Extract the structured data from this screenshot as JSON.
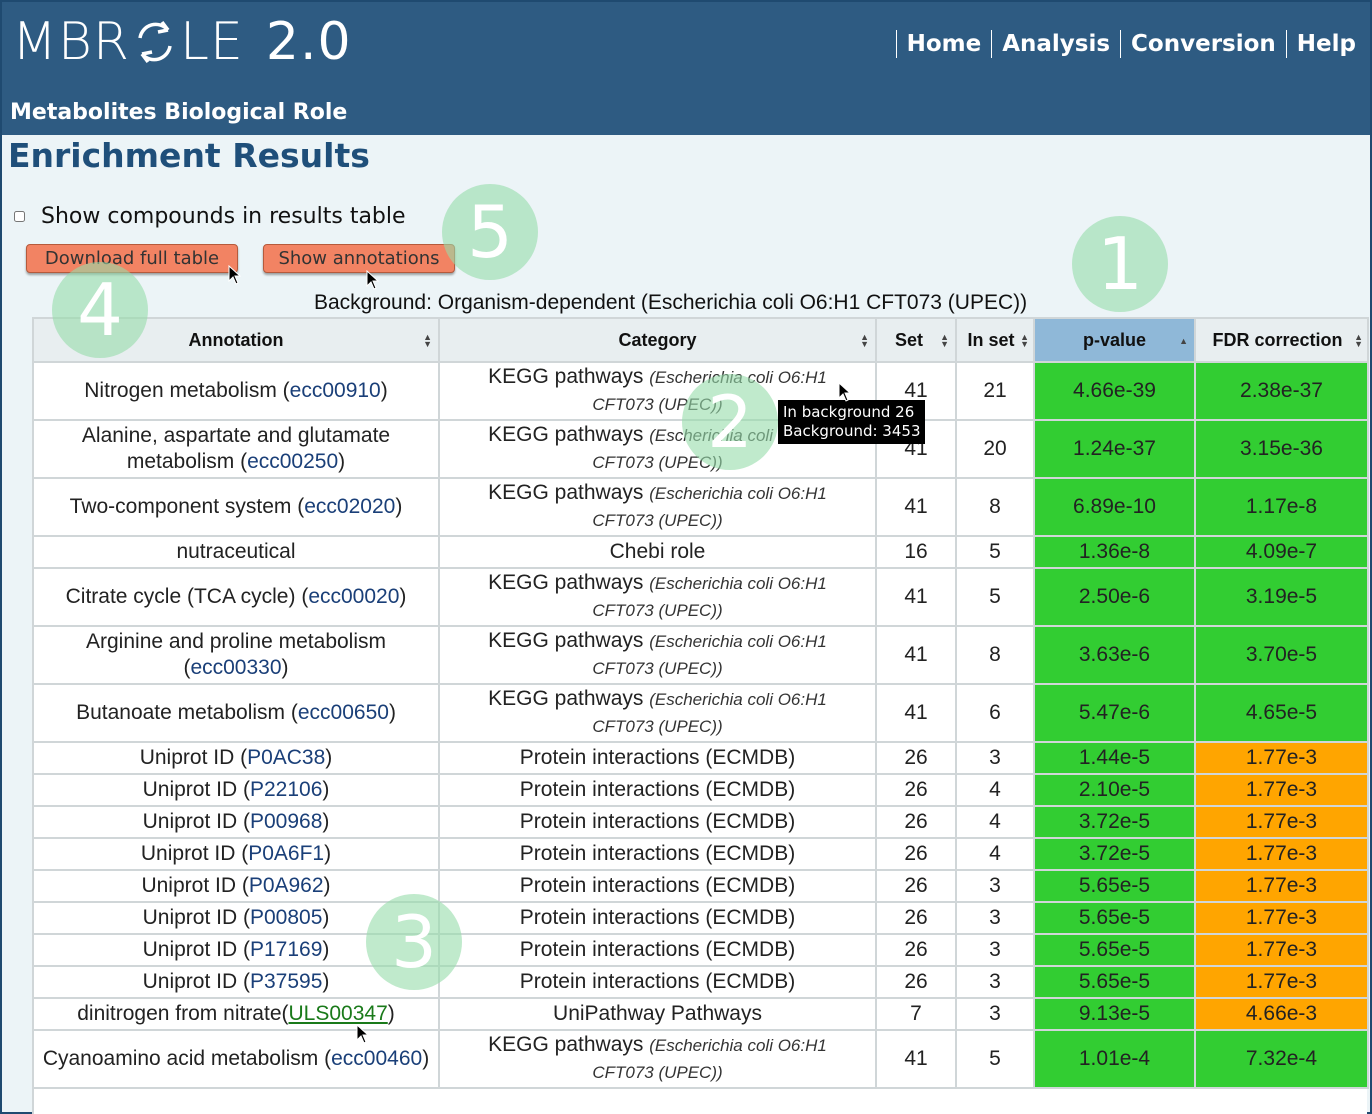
{
  "header": {
    "logo_text_a": "MBR",
    "logo_text_b": "LE",
    "logo_version": "2.0",
    "tagline": "Metabolites Biological Role",
    "nav": [
      {
        "label": "Home"
      },
      {
        "label": "Analysis"
      },
      {
        "label": "Conversion"
      },
      {
        "label": "Help"
      }
    ]
  },
  "page_title": "Enrichment Results",
  "show_compounds_label": "Show compounds in results table",
  "buttons": {
    "download": "Download full table",
    "annotations": "Show annotations"
  },
  "background_line": "Background: Organism-dependent (Escherichia coli O6:H1 CFT073 (UPEC))",
  "tooltip": {
    "line1": "In background 26",
    "line2": "Background: 3453"
  },
  "badges": [
    "1",
    "2",
    "3",
    "4",
    "5"
  ],
  "table": {
    "headers": [
      "Annotation",
      "Category",
      "Set",
      "In set",
      "p-value",
      "FDR correction"
    ],
    "rows": [
      {
        "pre": "Nitrogen metabolism (",
        "link": "ecc00910",
        "post": ")",
        "cat": "KEGG pathways",
        "org": "(Escherichia coli O6:H1 CFT073 (UPEC))",
        "set": "41",
        "inset": "21",
        "p": "4.66e-39",
        "fdr": "2.38e-37",
        "fdr_color": "green"
      },
      {
        "pre": "Alanine, aspartate and glutamate metabolism (",
        "link": "ecc00250",
        "post": ")",
        "cat": "KEGG pathways",
        "org": "(Escherichia coli O6:H1 CFT073 (UPEC))",
        "set": "41",
        "inset": "20",
        "p": "1.24e-37",
        "fdr": "3.15e-36",
        "fdr_color": "green"
      },
      {
        "pre": "Two-component system (",
        "link": "ecc02020",
        "post": ")",
        "cat": "KEGG pathways",
        "org": "(Escherichia coli O6:H1 CFT073 (UPEC))",
        "set": "41",
        "inset": "8",
        "p": "6.89e-10",
        "fdr": "1.17e-8",
        "fdr_color": "green"
      },
      {
        "pre": "nutraceutical",
        "link": "",
        "post": "",
        "cat": "Chebi role",
        "org": "",
        "set": "16",
        "inset": "5",
        "p": "1.36e-8",
        "fdr": "4.09e-7",
        "fdr_color": "green"
      },
      {
        "pre": "Citrate cycle (TCA cycle) (",
        "link": "ecc00020",
        "post": ")",
        "cat": "KEGG pathways",
        "org": "(Escherichia coli O6:H1 CFT073 (UPEC))",
        "set": "41",
        "inset": "5",
        "p": "2.50e-6",
        "fdr": "3.19e-5",
        "fdr_color": "green"
      },
      {
        "pre": "Arginine and proline metabolism (",
        "link": "ecc00330",
        "post": ")",
        "cat": "KEGG pathways",
        "org": "(Escherichia coli O6:H1 CFT073 (UPEC))",
        "set": "41",
        "inset": "8",
        "p": "3.63e-6",
        "fdr": "3.70e-5",
        "fdr_color": "green"
      },
      {
        "pre": "Butanoate metabolism (",
        "link": "ecc00650",
        "post": ")",
        "cat": "KEGG pathways",
        "org": "(Escherichia coli O6:H1 CFT073 (UPEC))",
        "set": "41",
        "inset": "6",
        "p": "5.47e-6",
        "fdr": "4.65e-5",
        "fdr_color": "green"
      },
      {
        "pre": "Uniprot ID (",
        "link": "P0AC38",
        "post": ")",
        "cat": "Protein interactions (ECMDB)",
        "org": "",
        "set": "26",
        "inset": "3",
        "p": "1.44e-5",
        "fdr": "1.77e-3",
        "fdr_color": "orange"
      },
      {
        "pre": "Uniprot ID (",
        "link": "P22106",
        "post": ")",
        "cat": "Protein interactions (ECMDB)",
        "org": "",
        "set": "26",
        "inset": "4",
        "p": "2.10e-5",
        "fdr": "1.77e-3",
        "fdr_color": "orange"
      },
      {
        "pre": "Uniprot ID (",
        "link": "P00968",
        "post": ")",
        "cat": "Protein interactions (ECMDB)",
        "org": "",
        "set": "26",
        "inset": "4",
        "p": "3.72e-5",
        "fdr": "1.77e-3",
        "fdr_color": "orange"
      },
      {
        "pre": "Uniprot ID (",
        "link": "P0A6F1",
        "post": ")",
        "cat": "Protein interactions (ECMDB)",
        "org": "",
        "set": "26",
        "inset": "4",
        "p": "3.72e-5",
        "fdr": "1.77e-3",
        "fdr_color": "orange"
      },
      {
        "pre": "Uniprot ID (",
        "link": "P0A962",
        "post": ")",
        "cat": "Protein interactions (ECMDB)",
        "org": "",
        "set": "26",
        "inset": "3",
        "p": "5.65e-5",
        "fdr": "1.77e-3",
        "fdr_color": "orange"
      },
      {
        "pre": "Uniprot ID (",
        "link": "P00805",
        "post": ")",
        "cat": "Protein interactions (ECMDB)",
        "org": "",
        "set": "26",
        "inset": "3",
        "p": "5.65e-5",
        "fdr": "1.77e-3",
        "fdr_color": "orange"
      },
      {
        "pre": "Uniprot ID (",
        "link": "P17169",
        "post": ")",
        "cat": "Protein interactions (ECMDB)",
        "org": "",
        "set": "26",
        "inset": "3",
        "p": "5.65e-5",
        "fdr": "1.77e-3",
        "fdr_color": "orange"
      },
      {
        "pre": "Uniprot ID (",
        "link": "P37595",
        "post": ")",
        "cat": "Protein interactions (ECMDB)",
        "org": "",
        "set": "26",
        "inset": "3",
        "p": "5.65e-5",
        "fdr": "1.77e-3",
        "fdr_color": "orange"
      },
      {
        "pre": "dinitrogen from nitrate(",
        "link": "ULS00347",
        "post": ")",
        "cat": "UniPathway Pathways",
        "org": "",
        "set": "7",
        "inset": "3",
        "p": "9.13e-5",
        "fdr": "4.66e-3",
        "fdr_color": "orange",
        "uls": true
      },
      {
        "pre": "Cyanoamino acid metabolism (",
        "link": "ecc00460",
        "post": ")",
        "cat": "KEGG pathways",
        "org": "(Escherichia coli O6:H1 CFT073 (UPEC))",
        "set": "41",
        "inset": "5",
        "p": "1.01e-4",
        "fdr": "7.32e-4",
        "fdr_color": "green"
      }
    ]
  }
}
